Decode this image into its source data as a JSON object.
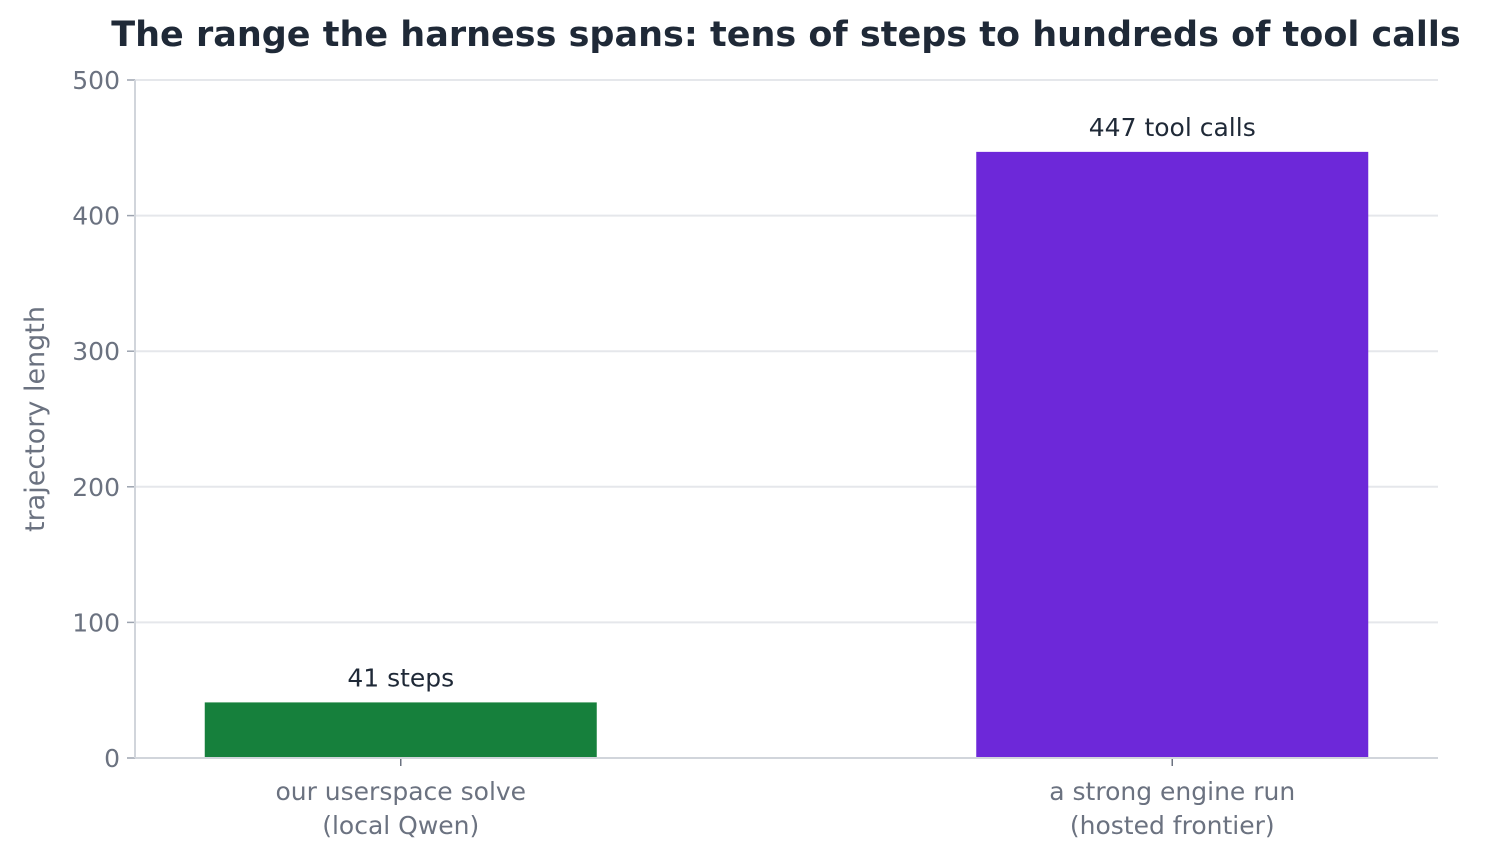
{
  "chart_data": {
    "type": "bar",
    "title": "The range the harness spans: tens of steps to hundreds of tool calls",
    "xlabel": "",
    "ylabel": "trajectory length",
    "ylim": [
      0,
      500
    ],
    "yticks": [
      0,
      100,
      200,
      300,
      400,
      500
    ],
    "grid": true,
    "categories": [
      [
        "our userspace solve",
        "(local Qwen)"
      ],
      [
        "a strong engine run",
        "(hosted frontier)"
      ]
    ],
    "values": [
      41,
      447
    ],
    "data_labels": [
      "41 steps",
      "447 tool calls"
    ],
    "colors": [
      "#16803c",
      "#6d28d9"
    ]
  }
}
